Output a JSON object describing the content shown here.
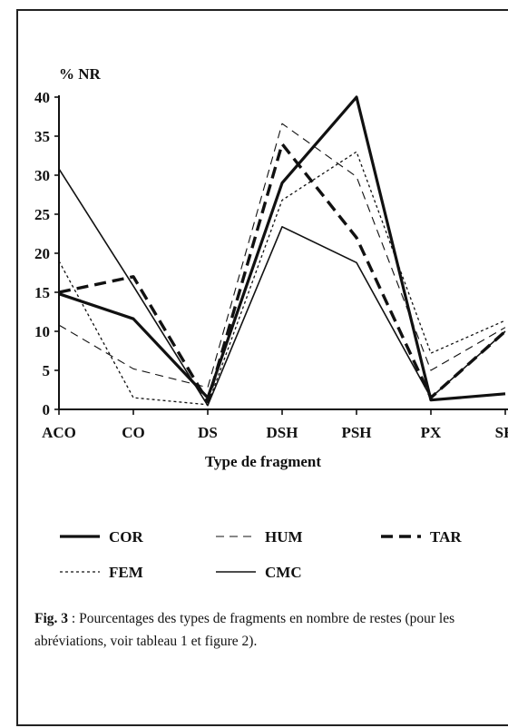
{
  "chart_data": {
    "type": "line",
    "ylabel": "% NR",
    "xlabel": "Type de fragment",
    "categories": [
      "ACO",
      "CO",
      "DS",
      "DSH",
      "PSH",
      "PX",
      "SH"
    ],
    "ylim": [
      0,
      40
    ],
    "yticks": [
      "0",
      "5",
      "10",
      "15",
      "20",
      "25",
      "30",
      "35",
      "40"
    ],
    "grid": false,
    "legend_position": "bottom",
    "series": [
      {
        "name": "COR",
        "style": "thick-solid",
        "values": [
          14.8,
          11.6,
          1.5,
          29.0,
          40.0,
          1.2,
          2.0
        ]
      },
      {
        "name": "HUM",
        "style": "thin-dashed",
        "values": [
          10.8,
          5.2,
          2.8,
          36.6,
          29.8,
          5.0,
          10.5
        ]
      },
      {
        "name": "TAR",
        "style": "thick-dashed",
        "values": [
          15.0,
          17.0,
          1.0,
          34.0,
          22.0,
          1.5,
          10.0
        ]
      },
      {
        "name": "FEM",
        "style": "dotted",
        "values": [
          19.0,
          1.5,
          0.6,
          26.8,
          33.0,
          7.2,
          11.4
        ]
      },
      {
        "name": "CMC",
        "style": "thin-solid",
        "values": [
          30.8,
          15.8,
          0.5,
          23.4,
          18.8,
          1.5,
          10.0
        ]
      }
    ]
  },
  "caption": {
    "label": "Fig. 3",
    "text": " : Pourcentages des types de fragments en nombre de restes (pour les abréviations, voir tableau 1 et figure 2)."
  }
}
